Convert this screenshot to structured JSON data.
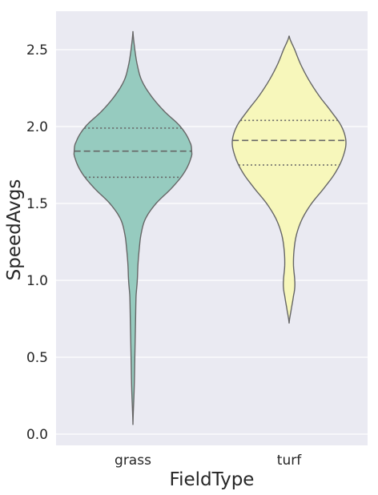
{
  "chart_data": {
    "type": "violin",
    "xlabel": "FieldType",
    "ylabel": "SpeedAvgs",
    "categories": [
      "grass",
      "turf"
    ],
    "ylim": [
      -0.08,
      2.76
    ],
    "yticks": [
      0.0,
      0.5,
      1.0,
      1.5,
      2.0,
      2.5
    ],
    "ytick_labels": [
      "0.0",
      "0.5",
      "1.0",
      "1.5",
      "2.0",
      "2.5"
    ],
    "grid": true,
    "background": "#eaeaf2",
    "colors": {
      "grass": "#96cbbf",
      "turf": "#f7f7bb",
      "edge": "#666666",
      "grid": "#ffffff"
    },
    "violins": [
      {
        "name": "grass",
        "quartiles": {
          "q1": 1.67,
          "median": 1.84,
          "q3": 1.99
        },
        "profile": [
          [
            0.06,
            0.0
          ],
          [
            0.3,
            0.02
          ],
          [
            0.5,
            0.03
          ],
          [
            0.7,
            0.04
          ],
          [
            0.9,
            0.05
          ],
          [
            1.0,
            0.07
          ],
          [
            1.1,
            0.08
          ],
          [
            1.2,
            0.1
          ],
          [
            1.3,
            0.13
          ],
          [
            1.4,
            0.2
          ],
          [
            1.5,
            0.37
          ],
          [
            1.6,
            0.62
          ],
          [
            1.7,
            0.82
          ],
          [
            1.8,
            0.93
          ],
          [
            1.84,
            0.94
          ],
          [
            1.9,
            0.91
          ],
          [
            2.0,
            0.76
          ],
          [
            2.1,
            0.5
          ],
          [
            2.2,
            0.29
          ],
          [
            2.3,
            0.14
          ],
          [
            2.4,
            0.07
          ],
          [
            2.5,
            0.03
          ],
          [
            2.62,
            0.0
          ]
        ]
      },
      {
        "name": "turf",
        "quartiles": {
          "q1": 1.75,
          "median": 1.91,
          "q3": 2.04
        },
        "profile": [
          [
            0.72,
            0.0
          ],
          [
            0.8,
            0.03
          ],
          [
            0.9,
            0.07
          ],
          [
            0.95,
            0.09
          ],
          [
            1.0,
            0.09
          ],
          [
            1.1,
            0.07
          ],
          [
            1.2,
            0.08
          ],
          [
            1.3,
            0.12
          ],
          [
            1.4,
            0.21
          ],
          [
            1.5,
            0.36
          ],
          [
            1.6,
            0.56
          ],
          [
            1.7,
            0.74
          ],
          [
            1.8,
            0.86
          ],
          [
            1.9,
            0.91
          ],
          [
            2.0,
            0.84
          ],
          [
            2.1,
            0.67
          ],
          [
            2.2,
            0.48
          ],
          [
            2.3,
            0.32
          ],
          [
            2.4,
            0.19
          ],
          [
            2.5,
            0.09
          ],
          [
            2.59,
            0.0
          ]
        ]
      }
    ]
  }
}
